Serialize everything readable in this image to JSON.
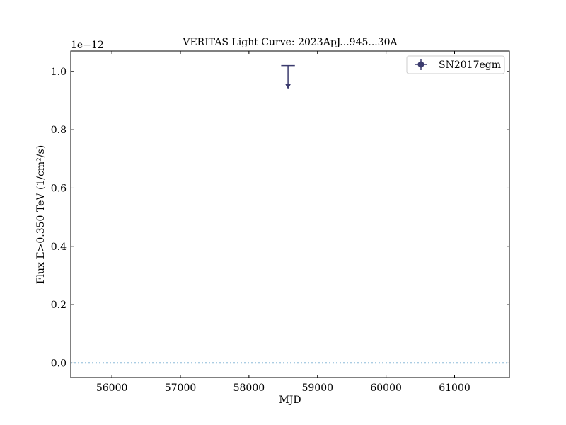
{
  "chart_data": {
    "type": "scatter",
    "title": "VERITAS Light Curve: 2023ApJ...945...30A",
    "xlabel": "MJD",
    "ylabel": "Flux E>0.350 TeV (1/cm²/s)",
    "y_offset_text": "1e−12",
    "xlim": [
      55400,
      61800
    ],
    "ylim": [
      -0.05,
      1.07
    ],
    "y_scale_factor": "1e-12",
    "x_ticks": [
      56000,
      57000,
      58000,
      59000,
      60000,
      61000
    ],
    "x_tick_labels": [
      "56000",
      "57000",
      "58000",
      "59000",
      "60000",
      "61000"
    ],
    "y_ticks": [
      0.0,
      0.2,
      0.4,
      0.6,
      0.8,
      1.0
    ],
    "y_tick_labels": [
      "0.0",
      "0.2",
      "0.4",
      "0.6",
      "0.8",
      "1.0"
    ],
    "grid": false,
    "legend_position": "top-right",
    "series": [
      {
        "name": "SN2017egm",
        "color": "#3b3b6e",
        "points": [
          {
            "x": 58570,
            "x_err": 100,
            "y": 1.02,
            "upper_limit": true
          }
        ]
      }
    ],
    "reference_line": {
      "y": 0.0,
      "style": "dotted",
      "color": "#1f77b4"
    }
  }
}
